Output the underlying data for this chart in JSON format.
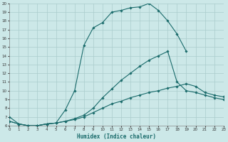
{
  "xlabel": "Humidex (Indice chaleur)",
  "bg_color": "#cce8e8",
  "grid_color": "#aacccc",
  "line_color": "#1a6b6b",
  "xmin": 0,
  "xmax": 23,
  "ymin": 6,
  "ymax": 20,
  "curve1_x": [
    0,
    1,
    2,
    3,
    4,
    5,
    6,
    7,
    8,
    9,
    10,
    11,
    12,
    13,
    14,
    15,
    16,
    17,
    18,
    19
  ],
  "curve1_y": [
    7.0,
    6.2,
    6.0,
    6.0,
    6.2,
    6.3,
    7.8,
    10.0,
    15.2,
    17.2,
    17.8,
    19.0,
    19.2,
    19.5,
    19.6,
    20.0,
    19.2,
    18.0,
    16.5,
    14.5
  ],
  "curve2_x": [
    0,
    1,
    2,
    3,
    4,
    5,
    6,
    7,
    8,
    9,
    10,
    11,
    12,
    13,
    14,
    15,
    16,
    17,
    18,
    19,
    20,
    21,
    22,
    23
  ],
  "curve2_y": [
    6.5,
    6.2,
    6.0,
    6.0,
    6.2,
    6.3,
    6.5,
    6.8,
    7.2,
    8.0,
    9.2,
    10.2,
    11.2,
    12.0,
    12.8,
    13.5,
    14.0,
    14.5,
    11.0,
    10.0,
    9.8,
    9.5,
    9.2,
    9.0
  ],
  "curve3_x": [
    0,
    1,
    2,
    3,
    4,
    5,
    6,
    7,
    8,
    9,
    10,
    11,
    12,
    13,
    14,
    15,
    16,
    17,
    18,
    19,
    20,
    21,
    22,
    23
  ],
  "curve3_y": [
    6.5,
    6.2,
    6.0,
    6.0,
    6.2,
    6.3,
    6.5,
    6.7,
    7.0,
    7.5,
    8.0,
    8.5,
    8.8,
    9.2,
    9.5,
    9.8,
    10.0,
    10.3,
    10.5,
    10.8,
    10.5,
    9.8,
    9.5,
    9.3
  ]
}
